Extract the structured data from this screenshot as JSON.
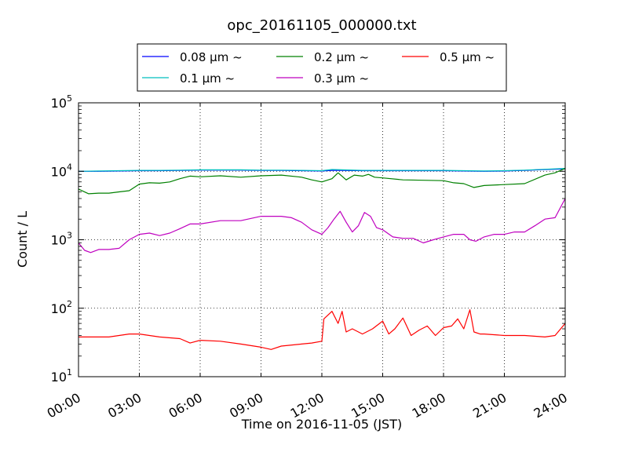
{
  "chart_data": {
    "type": "line",
    "title": "opc_20161105_000000.txt",
    "xlabel": "Time on 2016-11-05 (JST)",
    "ylabel": "Count / L",
    "x_ticks": [
      "00:00",
      "03:00",
      "06:00",
      "09:00",
      "12:00",
      "15:00",
      "18:00",
      "21:00",
      "24:00"
    ],
    "y_scale": "log",
    "ylim": [
      10,
      100000
    ],
    "xlim_hours": [
      0,
      24
    ],
    "y_ticks": [
      {
        "base": "10",
        "exp": "1"
      },
      {
        "base": "10",
        "exp": "2"
      },
      {
        "base": "10",
        "exp": "3"
      },
      {
        "base": "10",
        "exp": "4"
      },
      {
        "base": "10",
        "exp": "5"
      }
    ],
    "grid": true,
    "legend_placement": "top-center",
    "series": [
      {
        "name": "0.08 μm ~",
        "color": "#0000ff",
        "x": [
          0,
          1,
          2,
          3,
          4,
          5,
          6,
          7,
          8,
          9,
          10,
          11,
          12,
          12.5,
          13,
          14,
          15,
          16,
          17,
          18,
          19,
          20,
          21,
          22,
          23,
          24
        ],
        "y": [
          10000,
          10000,
          10100,
          10200,
          10200,
          10300,
          10400,
          10400,
          10400,
          10300,
          10300,
          10200,
          10100,
          10300,
          10300,
          10200,
          10200,
          10200,
          10200,
          10200,
          10100,
          10000,
          10100,
          10300,
          10600,
          10800
        ]
      },
      {
        "name": "0.1 μm ~",
        "color": "#00bfbf",
        "x": [
          0,
          1,
          2,
          3,
          4,
          5,
          6,
          7,
          8,
          9,
          10,
          11,
          12,
          12.5,
          13,
          14,
          15,
          16,
          17,
          18,
          19,
          20,
          21,
          22,
          23,
          24
        ],
        "y": [
          10000,
          10100,
          10200,
          10300,
          10300,
          10400,
          10500,
          10500,
          10500,
          10400,
          10400,
          10300,
          10200,
          10600,
          10500,
          10300,
          10300,
          10300,
          10300,
          10300,
          10200,
          10100,
          10200,
          10400,
          10700,
          11000
        ]
      },
      {
        "name": "0.2 μm ~",
        "color": "#008000",
        "x": [
          0,
          0.5,
          1,
          1.5,
          2,
          2.5,
          3,
          3.5,
          4,
          4.5,
          5,
          5.5,
          6,
          7,
          8,
          9,
          10,
          11,
          11.5,
          12,
          12.5,
          12.8,
          13.2,
          13.6,
          14,
          14.3,
          14.6,
          15,
          16,
          17,
          18,
          18.5,
          19,
          19.5,
          20,
          21,
          22,
          23,
          23.5,
          24
        ],
        "y": [
          5500,
          4700,
          4800,
          4800,
          5000,
          5200,
          6500,
          6800,
          6700,
          7000,
          7800,
          8500,
          8300,
          8600,
          8200,
          8600,
          8800,
          8200,
          7500,
          7000,
          7800,
          9500,
          7500,
          8800,
          8500,
          9000,
          8200,
          8000,
          7500,
          7400,
          7300,
          6800,
          6600,
          5800,
          6200,
          6400,
          6600,
          8800,
          9500,
          11000
        ]
      },
      {
        "name": "0.3 μm ~",
        "color": "#bf00bf",
        "x": [
          0,
          0.3,
          0.6,
          1,
          1.5,
          2,
          2.5,
          3,
          3.5,
          4,
          4.5,
          5,
          5.5,
          6,
          7,
          8,
          9,
          10,
          10.5,
          11,
          11.5,
          12,
          12.3,
          12.6,
          12.9,
          13.2,
          13.5,
          13.8,
          14.1,
          14.4,
          14.7,
          15,
          15.5,
          16,
          16.5,
          17,
          17.5,
          18,
          18.5,
          19,
          19.3,
          19.6,
          20,
          20.5,
          21,
          21.5,
          22,
          22.5,
          23,
          23.5,
          24
        ],
        "y": [
          900,
          700,
          650,
          720,
          720,
          750,
          1000,
          1200,
          1250,
          1150,
          1250,
          1450,
          1700,
          1700,
          1900,
          1900,
          2200,
          2200,
          2100,
          1800,
          1400,
          1200,
          1500,
          2000,
          2600,
          1800,
          1300,
          1600,
          2500,
          2200,
          1500,
          1400,
          1100,
          1050,
          1050,
          900,
          1000,
          1100,
          1200,
          1200,
          1000,
          950,
          1100,
          1200,
          1200,
          1300,
          1300,
          1600,
          2000,
          2100,
          4000
        ]
      },
      {
        "name": "0.5 μm ~",
        "color": "#ff0000",
        "x": [
          0,
          0.5,
          1,
          1.5,
          2,
          2.5,
          3,
          4,
          5,
          5.5,
          6,
          7,
          8,
          9,
          9.5,
          10,
          11,
          11.5,
          12,
          12.1,
          12.5,
          12.8,
          13,
          13.2,
          13.5,
          14,
          14.5,
          15,
          15.3,
          15.6,
          16,
          16.4,
          16.8,
          17.2,
          17.6,
          18,
          18.4,
          18.7,
          19,
          19.3,
          19.5,
          19.8,
          20,
          21,
          22,
          23,
          23.5,
          24
        ],
        "y": [
          38,
          38,
          38,
          38,
          40,
          42,
          42,
          38,
          36,
          31,
          34,
          33,
          30,
          27,
          25,
          28,
          30,
          31,
          33,
          70,
          90,
          60,
          90,
          45,
          50,
          42,
          50,
          65,
          42,
          50,
          72,
          40,
          48,
          55,
          40,
          52,
          55,
          70,
          50,
          95,
          45,
          42,
          42,
          40,
          40,
          38,
          40,
          60
        ]
      }
    ]
  }
}
